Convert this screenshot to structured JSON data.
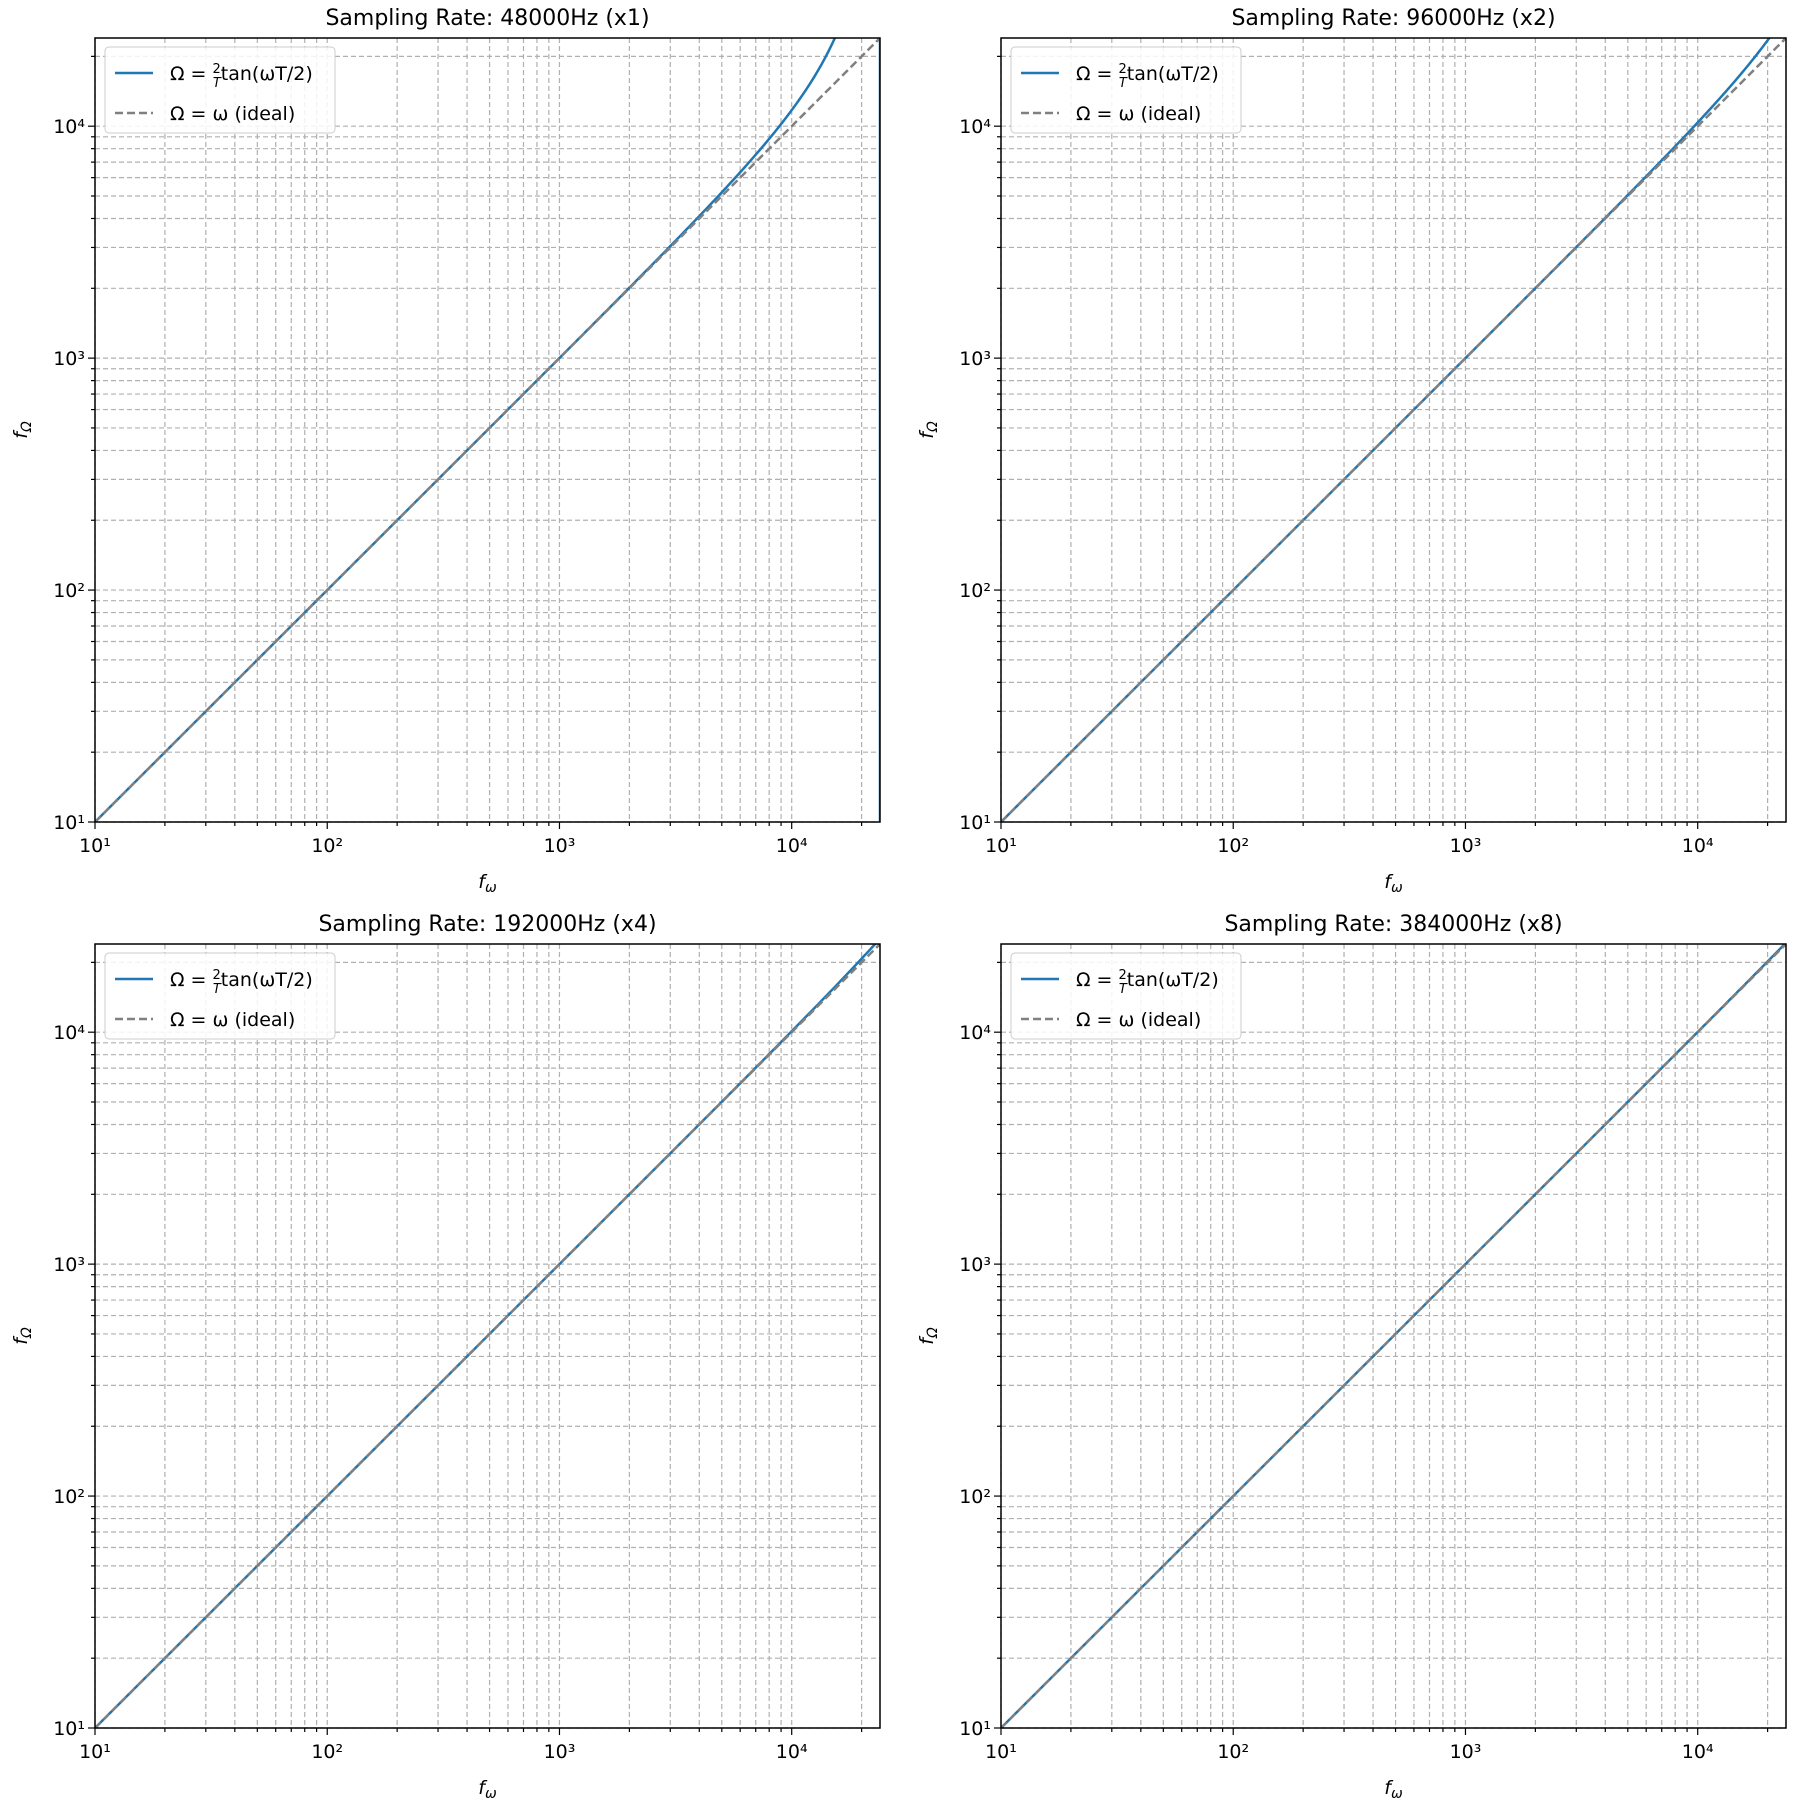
{
  "chart_data": [
    {
      "type": "line",
      "title": "Sampling Rate: 48000Hz (x1)",
      "sample_rate": 48000,
      "oversampling": "x1",
      "xlabel": "f_ω",
      "ylabel": "f_Ω",
      "xscale": "log",
      "yscale": "log",
      "xlim": [
        10,
        24000
      ],
      "ylim": [
        10,
        24000
      ],
      "grid": true,
      "legend": "top-left",
      "series": [
        {
          "name": "Ω = (2/T) tan(ωT/2)",
          "formula": "fs/pi*tan(pi*f/fs)",
          "color": "#1f77b4",
          "style": "solid"
        },
        {
          "name": "Ω = ω (ideal)",
          "formula": "f",
          "color": "#808080",
          "style": "dashed"
        }
      ],
      "x_ticks": [
        "10¹",
        "10²",
        "10³",
        "10⁴"
      ],
      "y_ticks": [
        "10¹",
        "10²",
        "10³",
        "10⁴"
      ]
    },
    {
      "type": "line",
      "title": "Sampling Rate: 96000Hz (x2)",
      "sample_rate": 96000,
      "oversampling": "x2",
      "xlabel": "f_ω",
      "ylabel": "f_Ω",
      "xscale": "log",
      "yscale": "log",
      "xlim": [
        10,
        24000
      ],
      "ylim": [
        10,
        24000
      ],
      "grid": true,
      "legend": "top-left",
      "series": [
        {
          "name": "Ω = (2/T) tan(ωT/2)",
          "formula": "fs/pi*tan(pi*f/fs)",
          "color": "#1f77b4",
          "style": "solid"
        },
        {
          "name": "Ω = ω (ideal)",
          "formula": "f",
          "color": "#808080",
          "style": "dashed"
        }
      ],
      "x_ticks": [
        "10¹",
        "10²",
        "10³",
        "10⁴"
      ],
      "y_ticks": [
        "10¹",
        "10²",
        "10³",
        "10⁴"
      ]
    },
    {
      "type": "line",
      "title": "Sampling Rate: 192000Hz (x4)",
      "sample_rate": 192000,
      "oversampling": "x4",
      "xlabel": "f_ω",
      "ylabel": "f_Ω",
      "xscale": "log",
      "yscale": "log",
      "xlim": [
        10,
        24000
      ],
      "ylim": [
        10,
        24000
      ],
      "grid": true,
      "legend": "top-left",
      "series": [
        {
          "name": "Ω = (2/T) tan(ωT/2)",
          "formula": "fs/pi*tan(pi*f/fs)",
          "color": "#1f77b4",
          "style": "solid"
        },
        {
          "name": "Ω = ω (ideal)",
          "formula": "f",
          "color": "#808080",
          "style": "dashed"
        }
      ],
      "x_ticks": [
        "10¹",
        "10²",
        "10³",
        "10⁴"
      ],
      "y_ticks": [
        "10¹",
        "10²",
        "10³",
        "10⁴"
      ]
    },
    {
      "type": "line",
      "title": "Sampling Rate: 384000Hz (x8)",
      "sample_rate": 384000,
      "oversampling": "x8",
      "xlabel": "f_ω",
      "ylabel": "f_Ω",
      "xscale": "log",
      "yscale": "log",
      "xlim": [
        10,
        24000
      ],
      "ylim": [
        10,
        24000
      ],
      "grid": true,
      "legend": "top-left",
      "series": [
        {
          "name": "Ω = (2/T) tan(ωT/2)",
          "formula": "fs/pi*tan(pi*f/fs)",
          "color": "#1f77b4",
          "style": "solid"
        },
        {
          "name": "Ω = ω (ideal)",
          "formula": "f",
          "color": "#808080",
          "style": "dashed"
        }
      ],
      "x_ticks": [
        "10¹",
        "10²",
        "10³",
        "10⁴"
      ],
      "y_ticks": [
        "10¹",
        "10²",
        "10³",
        "10⁴"
      ]
    }
  ]
}
